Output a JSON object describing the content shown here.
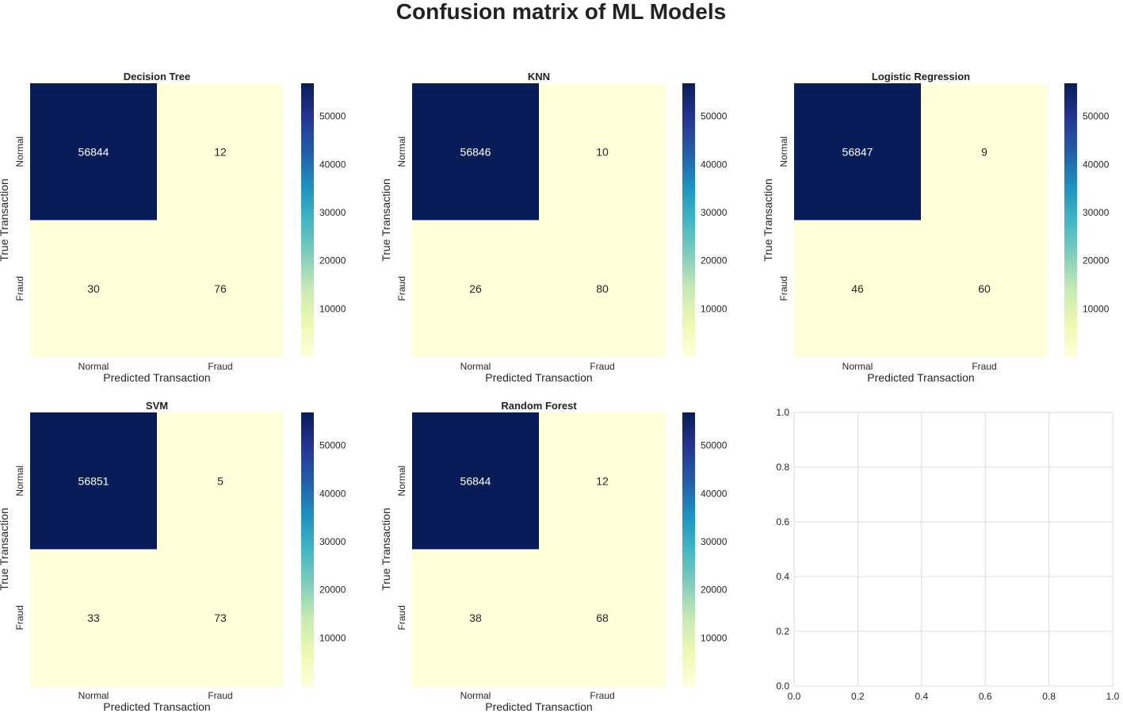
{
  "figure": {
    "title": "Confusion matrix of ML Models"
  },
  "colormap": {
    "name": "YlGnBu",
    "stops": [
      "#ffffd9",
      "#edf8b1",
      "#c7e9b4",
      "#7fcdbb",
      "#41b6c4",
      "#1d91c0",
      "#225ea8",
      "#253494",
      "#081d58"
    ]
  },
  "chart_data": [
    {
      "type": "heatmap",
      "title": "Decision Tree",
      "xlabel": "Predicted Transaction",
      "ylabel": "True Transaction",
      "x_categories": [
        "Normal",
        "Fraud"
      ],
      "y_categories": [
        "Normal",
        "Fraud"
      ],
      "values": [
        [
          56844,
          12
        ],
        [
          30,
          76
        ]
      ],
      "colorbar": {
        "min": 5,
        "max": 56851,
        "ticks": [
          10000,
          20000,
          30000,
          40000,
          50000
        ]
      }
    },
    {
      "type": "heatmap",
      "title": "KNN",
      "xlabel": "Predicted Transaction",
      "ylabel": "True Transaction",
      "x_categories": [
        "Normal",
        "Fraud"
      ],
      "y_categories": [
        "Normal",
        "Fraud"
      ],
      "values": [
        [
          56846,
          10
        ],
        [
          26,
          80
        ]
      ],
      "colorbar": {
        "min": 5,
        "max": 56851,
        "ticks": [
          10000,
          20000,
          30000,
          40000,
          50000
        ]
      }
    },
    {
      "type": "heatmap",
      "title": "Logistic Regression",
      "xlabel": "Predicted Transaction",
      "ylabel": "True Transaction",
      "x_categories": [
        "Normal",
        "Fraud"
      ],
      "y_categories": [
        "Normal",
        "Fraud"
      ],
      "values": [
        [
          56847,
          9
        ],
        [
          46,
          60
        ]
      ],
      "colorbar": {
        "min": 5,
        "max": 56851,
        "ticks": [
          10000,
          20000,
          30000,
          40000,
          50000
        ]
      }
    },
    {
      "type": "heatmap",
      "title": "SVM",
      "xlabel": "Predicted Transaction",
      "ylabel": "True Transaction",
      "x_categories": [
        "Normal",
        "Fraud"
      ],
      "y_categories": [
        "Normal",
        "Fraud"
      ],
      "values": [
        [
          56851,
          5
        ],
        [
          33,
          73
        ]
      ],
      "colorbar": {
        "min": 5,
        "max": 56851,
        "ticks": [
          10000,
          20000,
          30000,
          40000,
          50000
        ]
      }
    },
    {
      "type": "heatmap",
      "title": "Random Forest",
      "xlabel": "Predicted Transaction",
      "ylabel": "True Transaction",
      "x_categories": [
        "Normal",
        "Fraud"
      ],
      "y_categories": [
        "Normal",
        "Fraud"
      ],
      "values": [
        [
          56844,
          12
        ],
        [
          38,
          68
        ]
      ],
      "colorbar": {
        "min": 5,
        "max": 56851,
        "ticks": [
          10000,
          20000,
          30000,
          40000,
          50000
        ]
      }
    },
    {
      "type": "empty",
      "title": "",
      "xlim": [
        0.0,
        1.0
      ],
      "ylim": [
        0.0,
        1.0
      ],
      "xticks": [
        "0.0",
        "0.2",
        "0.4",
        "0.6",
        "0.8",
        "1.0"
      ],
      "yticks": [
        "0.0",
        "0.2",
        "0.4",
        "0.6",
        "0.8",
        "1.0"
      ],
      "grid": true
    }
  ]
}
